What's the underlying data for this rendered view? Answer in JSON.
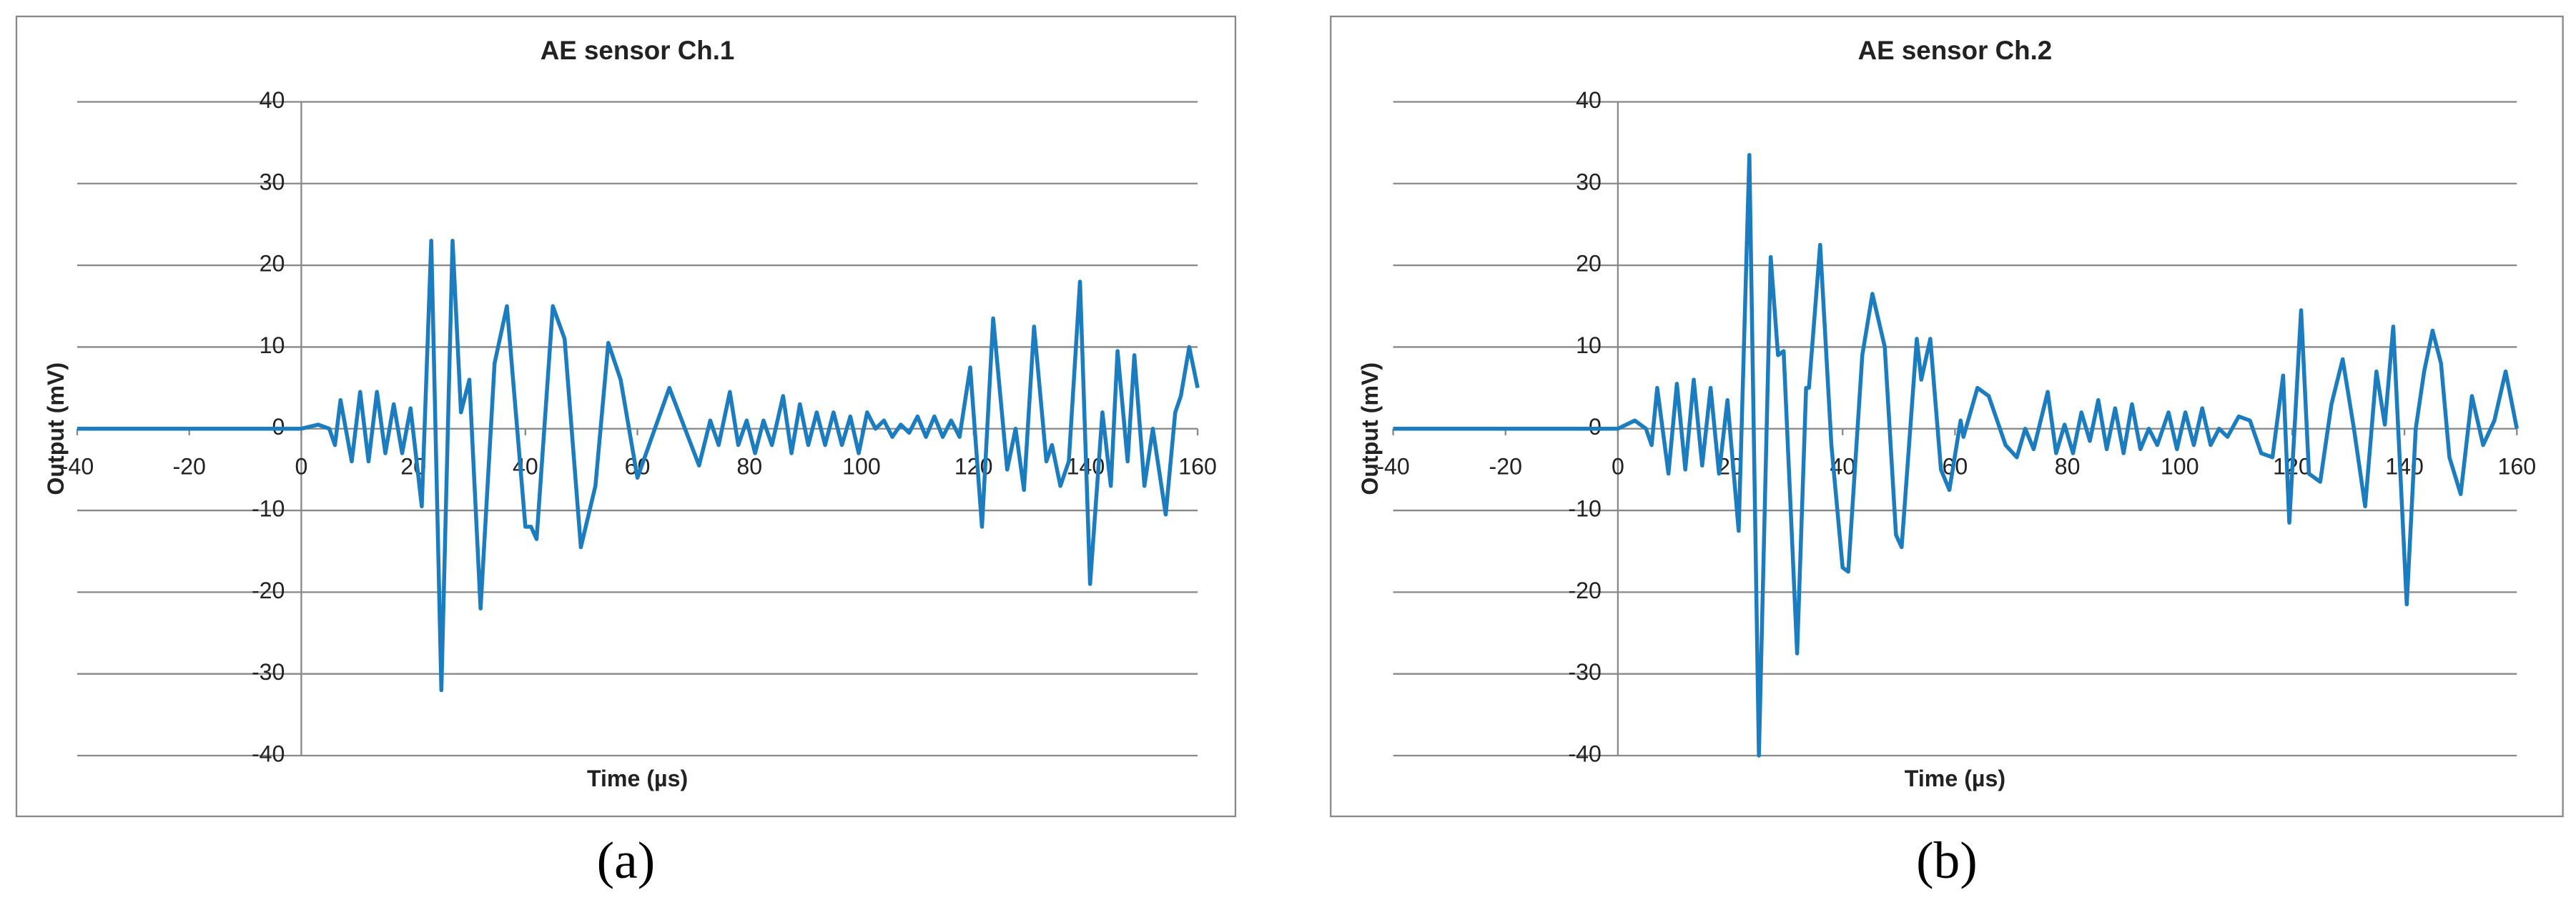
{
  "chart_data": [
    {
      "type": "line",
      "title": "AE sensor Ch.1",
      "x_label": "Time (µs)",
      "y_label": "Output (mV)",
      "caption": "(a)",
      "color": "#1b7dc0",
      "grid": true,
      "xlim": [
        -40,
        160
      ],
      "ylim": [
        -40,
        40
      ],
      "xticks": [
        -40,
        -20,
        0,
        20,
        40,
        60,
        80,
        100,
        120,
        140,
        160
      ],
      "yticks": [
        -40,
        -30,
        -20,
        -10,
        0,
        10,
        20,
        30,
        40
      ],
      "x": [
        -40,
        0,
        3,
        5,
        6,
        7,
        9,
        10.5,
        12,
        13.5,
        15,
        16.5,
        18,
        19.5,
        21.5,
        23.2,
        25,
        27,
        28.5,
        30,
        32,
        34.5,
        36.7,
        40,
        41,
        42,
        44.9,
        47,
        49.9,
        52.5,
        54.8,
        57,
        60,
        65.7,
        71,
        73,
        74.5,
        76.5,
        78,
        79.5,
        81,
        82.5,
        84,
        86,
        87.5,
        89,
        90.5,
        92,
        93.5,
        95,
        96.5,
        98,
        99.5,
        101,
        102.5,
        104,
        105.5,
        107,
        108.5,
        110,
        111.5,
        113,
        114.5,
        116,
        117.5,
        119.4,
        121.5,
        123.5,
        126,
        127.5,
        129,
        130.8,
        133,
        134,
        135.5,
        137,
        139,
        140.8,
        143,
        144.5,
        145.7,
        147.5,
        148.7,
        150.5,
        152,
        154.3,
        156,
        157,
        158.5,
        160
      ],
      "values": [
        0,
        0,
        0.5,
        0,
        -2,
        3.5,
        -4,
        4.5,
        -4,
        4.5,
        -3,
        3,
        -3,
        2.5,
        -9.5,
        23,
        -32,
        23,
        2,
        6,
        -22,
        8,
        15,
        -12,
        -12,
        -13.5,
        15,
        11,
        -14.5,
        -7,
        10.5,
        6,
        -6,
        5,
        -4.5,
        1,
        -2,
        4.5,
        -2,
        1,
        -3,
        1,
        -2,
        4,
        -3,
        3,
        -2,
        2,
        -2,
        2,
        -2,
        1.5,
        -3,
        2,
        0,
        1,
        -1,
        0.5,
        -0.5,
        1.5,
        -1,
        1.5,
        -1,
        1,
        -1,
        7.5,
        -12,
        13.5,
        -5,
        0,
        -7.5,
        12.5,
        -4,
        -2,
        -7,
        -4,
        18,
        -19,
        2,
        -7,
        9.5,
        -4,
        9,
        -7,
        0,
        -10.5,
        2,
        4,
        10,
        5
      ]
    },
    {
      "type": "line",
      "title": "AE sensor Ch.2",
      "x_label": "Time (µs)",
      "y_label": "Output (mV)",
      "caption": "(b)",
      "color": "#1b7dc0",
      "grid": true,
      "xlim": [
        -40,
        160
      ],
      "ylim": [
        -40,
        40
      ],
      "xticks": [
        -40,
        -20,
        0,
        20,
        40,
        60,
        80,
        100,
        120,
        140,
        160
      ],
      "yticks": [
        -40,
        -30,
        -20,
        -10,
        0,
        10,
        20,
        30,
        40
      ],
      "x": [
        -40,
        0,
        3,
        5,
        6,
        7,
        9,
        10.5,
        12,
        13.5,
        15,
        16.5,
        18,
        19.5,
        21.5,
        23.4,
        25.1,
        27.2,
        28.5,
        29.5,
        31.9,
        33.5,
        34,
        36,
        38,
        40,
        41,
        43.5,
        45.3,
        47.5,
        49.5,
        50.5,
        53.2,
        54,
        55.6,
        57.5,
        59,
        61,
        61.5,
        64,
        66,
        69,
        71,
        72.5,
        74,
        76.5,
        78,
        79.5,
        81,
        82.5,
        84,
        85.5,
        87,
        88.5,
        90,
        91.5,
        93,
        94.5,
        96,
        98,
        99.5,
        101,
        102.5,
        104,
        105.5,
        107,
        108.5,
        110.5,
        112.5,
        114.5,
        116.5,
        118.4,
        119.5,
        121.6,
        123,
        125,
        127,
        129,
        131,
        133,
        135,
        136.5,
        138,
        140.4,
        142,
        143.5,
        145,
        146.5,
        148,
        150,
        152,
        154,
        156,
        158,
        160
      ],
      "values": [
        0,
        0,
        1,
        0,
        -2,
        5,
        -5.5,
        5.5,
        -5,
        6,
        -4.5,
        5,
        -5.5,
        3.5,
        -12.5,
        33.5,
        -40,
        21,
        9,
        9.5,
        -27.5,
        5,
        5,
        22.5,
        -2,
        -17,
        -17.5,
        9,
        16.5,
        10,
        -13,
        -14.5,
        11,
        6,
        11,
        -5,
        -7.5,
        1,
        -1,
        5,
        4,
        -2,
        -3.5,
        0,
        -2.5,
        4.5,
        -3,
        0.5,
        -3,
        2,
        -1.5,
        3.5,
        -2.5,
        2.5,
        -3,
        3,
        -2.5,
        0,
        -2,
        2,
        -2.5,
        2,
        -2,
        2.5,
        -2,
        0,
        -1,
        1.5,
        1,
        -3,
        -3.5,
        6.5,
        -11.5,
        14.5,
        -5.5,
        -6.5,
        3,
        8.5,
        0,
        -9.5,
        7,
        0.5,
        12.5,
        -21.5,
        0,
        7,
        12,
        8,
        -3.5,
        -8,
        4,
        -2,
        1,
        7,
        0
      ]
    }
  ]
}
